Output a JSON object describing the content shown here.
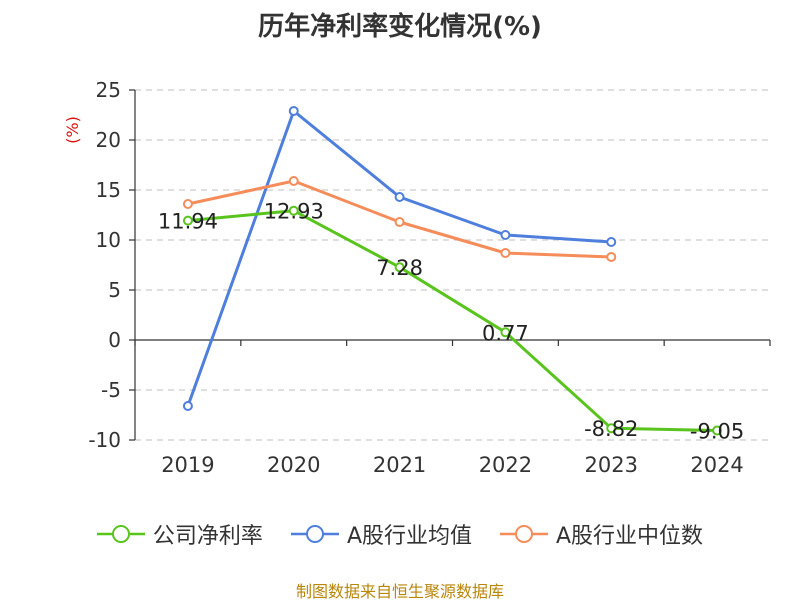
{
  "footer": {
    "source": "制图数据来自恒生聚源数据库"
  },
  "chart_data": {
    "type": "line",
    "title": "历年净利率变化情况(%)",
    "ylabel": "(%)",
    "xlabel": "",
    "categories": [
      "2019",
      "2020",
      "2021",
      "2022",
      "2023",
      "2024"
    ],
    "ylim": [
      -10,
      25
    ],
    "yticks": [
      25,
      20,
      15,
      10,
      5,
      0,
      -5,
      -10
    ],
    "grid": true,
    "legend_position": "bottom",
    "series": [
      {
        "name": "公司净利率",
        "color": "#5ac41e",
        "values": [
          11.94,
          12.93,
          7.28,
          0.77,
          -8.82,
          -9.05
        ],
        "labels": [
          "11.94",
          "12.93",
          "7.28",
          "0.77",
          "-8.82",
          "-9.05"
        ]
      },
      {
        "name": "A股行业均值",
        "color": "#4f7fdc",
        "values": [
          -6.6,
          22.9,
          14.3,
          10.5,
          9.8,
          null
        ],
        "labels": []
      },
      {
        "name": "A股行业中位数",
        "color": "#f58c5a",
        "values": [
          13.6,
          15.9,
          11.8,
          8.7,
          8.3,
          null
        ],
        "labels": []
      }
    ]
  }
}
